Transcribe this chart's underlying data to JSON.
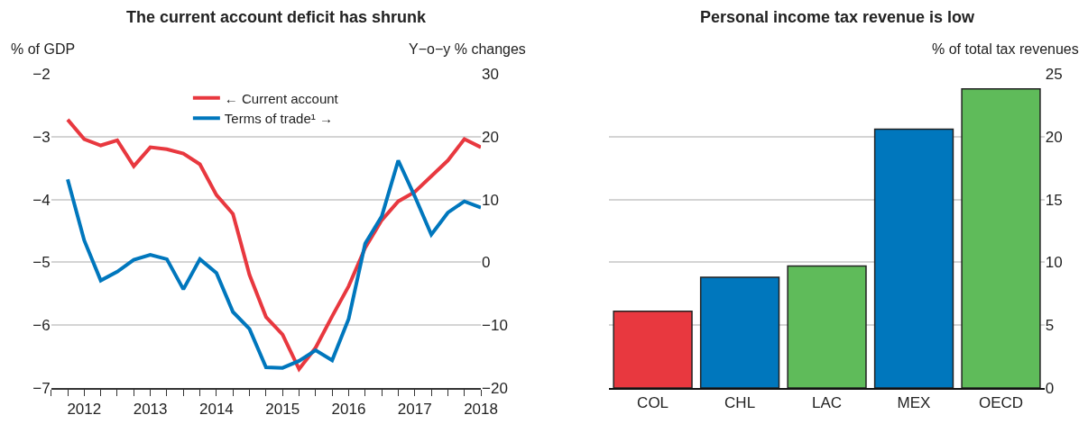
{
  "chart_data": [
    {
      "type": "line",
      "title": "The current account deficit has shrunk",
      "ylabel": "% of GDP",
      "y2label": "Y−o−y % changes",
      "x": [
        2012.25,
        2012.5,
        2012.75,
        2013,
        2013.25,
        2013.5,
        2013.75,
        2014,
        2014.25,
        2014.5,
        2014.75,
        2015,
        2015.25,
        2015.5,
        2015.75,
        2016,
        2016.25,
        2016.5,
        2016.75,
        2017,
        2017.25,
        2017.5,
        2017.75,
        2018,
        2018.25,
        2018.5
      ],
      "series": [
        {
          "name": "← Current account",
          "color": "#e8383f",
          "values": [
            -2.73,
            -3.04,
            -3.14,
            -3.06,
            -3.47,
            -3.17,
            -3.2,
            -3.27,
            -3.44,
            -3.93,
            -4.23,
            -5.2,
            -5.87,
            -6.15,
            -6.7,
            -6.36,
            -5.86,
            -5.38,
            -4.77,
            -4.33,
            -4.03,
            -3.88,
            -3.63,
            -3.38,
            -3.04,
            -3.17
          ]
        },
        {
          "name": "Terms of trade¹ →",
          "color": "#0077bd",
          "axis": "y2",
          "values": [
            13.2,
            3.5,
            -2.9,
            -1.5,
            0.4,
            1.2,
            0.5,
            -4.3,
            0.5,
            -1.7,
            -7.9,
            -10.6,
            -16.7,
            -16.8,
            -15.7,
            -14.0,
            -15.6,
            -9.0,
            3.0,
            7.3,
            16.2,
            10.5,
            4.4,
            7.9,
            9.7,
            8.7
          ]
        }
      ],
      "xlim": [
        2012,
        2018.5
      ],
      "xticks": [
        {
          "value": 2012,
          "label": null
        },
        {
          "value": 2012.25,
          "label": null
        },
        {
          "value": 2012.5,
          "label": "2012"
        },
        {
          "value": 2012.75,
          "label": null
        },
        {
          "value": 2013,
          "label": null
        },
        {
          "value": 2013.25,
          "label": null
        },
        {
          "value": 2013.5,
          "label": "2013"
        },
        {
          "value": 2013.75,
          "label": null
        },
        {
          "value": 2014,
          "label": null
        },
        {
          "value": 2014.25,
          "label": null
        },
        {
          "value": 2014.5,
          "label": "2014"
        },
        {
          "value": 2014.75,
          "label": null
        },
        {
          "value": 2015,
          "label": null
        },
        {
          "value": 2015.25,
          "label": null
        },
        {
          "value": 2015.5,
          "label": "2015"
        },
        {
          "value": 2015.75,
          "label": null
        },
        {
          "value": 2016,
          "label": null
        },
        {
          "value": 2016.25,
          "label": null
        },
        {
          "value": 2016.5,
          "label": "2016"
        },
        {
          "value": 2016.75,
          "label": null
        },
        {
          "value": 2017,
          "label": null
        },
        {
          "value": 2017.25,
          "label": null
        },
        {
          "value": 2017.5,
          "label": "2017"
        },
        {
          "value": 2017.75,
          "label": null
        },
        {
          "value": 2018,
          "label": null
        },
        {
          "value": 2018.25,
          "label": null
        },
        {
          "value": 2018.5,
          "label": "2018"
        }
      ],
      "ylim": [
        -7,
        -2
      ],
      "yticks": [
        -7,
        -6,
        -5,
        -4,
        -3,
        -2
      ],
      "y2lim": [
        -20,
        30
      ],
      "y2ticks": [
        -20,
        -10,
        0,
        10,
        20,
        30
      ],
      "grid": "y",
      "legend": "top"
    },
    {
      "type": "bar",
      "title": "Personal income tax revenue is low",
      "ylabel": "% of total tax revenues",
      "categories": [
        "COL",
        "CHL",
        "LAC",
        "MEX",
        "OECD"
      ],
      "values": [
        6.1,
        8.8,
        9.7,
        20.6,
        23.8
      ],
      "colors": [
        "#e8383f",
        "#0077bd",
        "#5fbb5a",
        "#0077bd",
        "#5fbb5a"
      ],
      "ylim": [
        0,
        25
      ],
      "yticks": [
        0,
        5,
        10,
        15,
        20,
        25
      ],
      "grid": "y"
    }
  ]
}
